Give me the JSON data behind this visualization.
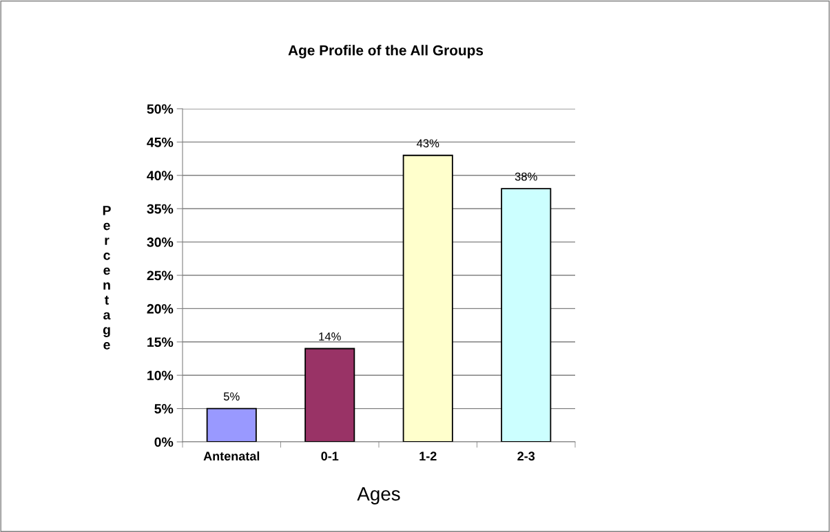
{
  "chart_data": {
    "type": "bar",
    "title": "Age Profile of the All Groups",
    "xlabel": "Ages",
    "ylabel": "Percentage",
    "categories": [
      "Antenatal",
      "0-1",
      "1-2",
      "2-3"
    ],
    "values": [
      5,
      14,
      43,
      38
    ],
    "colors": [
      "#9999ff",
      "#993366",
      "#ffffcc",
      "#ccffff"
    ],
    "value_labels": [
      "5%",
      "14%",
      "43%",
      "38%"
    ],
    "ylim": [
      0,
      50
    ],
    "yticks": [
      {
        "value": 0,
        "label": "0%"
      },
      {
        "value": 5,
        "label": "5%"
      },
      {
        "value": 10,
        "label": "10%"
      },
      {
        "value": 15,
        "label": "15%"
      },
      {
        "value": 20,
        "label": "20%"
      },
      {
        "value": 25,
        "label": "25%"
      },
      {
        "value": 30,
        "label": "30%"
      },
      {
        "value": 35,
        "label": "35%"
      },
      {
        "value": 40,
        "label": "40%"
      },
      {
        "value": 45,
        "label": "45%"
      },
      {
        "value": 50,
        "label": "50%"
      }
    ],
    "grid": "y",
    "legend": false
  }
}
